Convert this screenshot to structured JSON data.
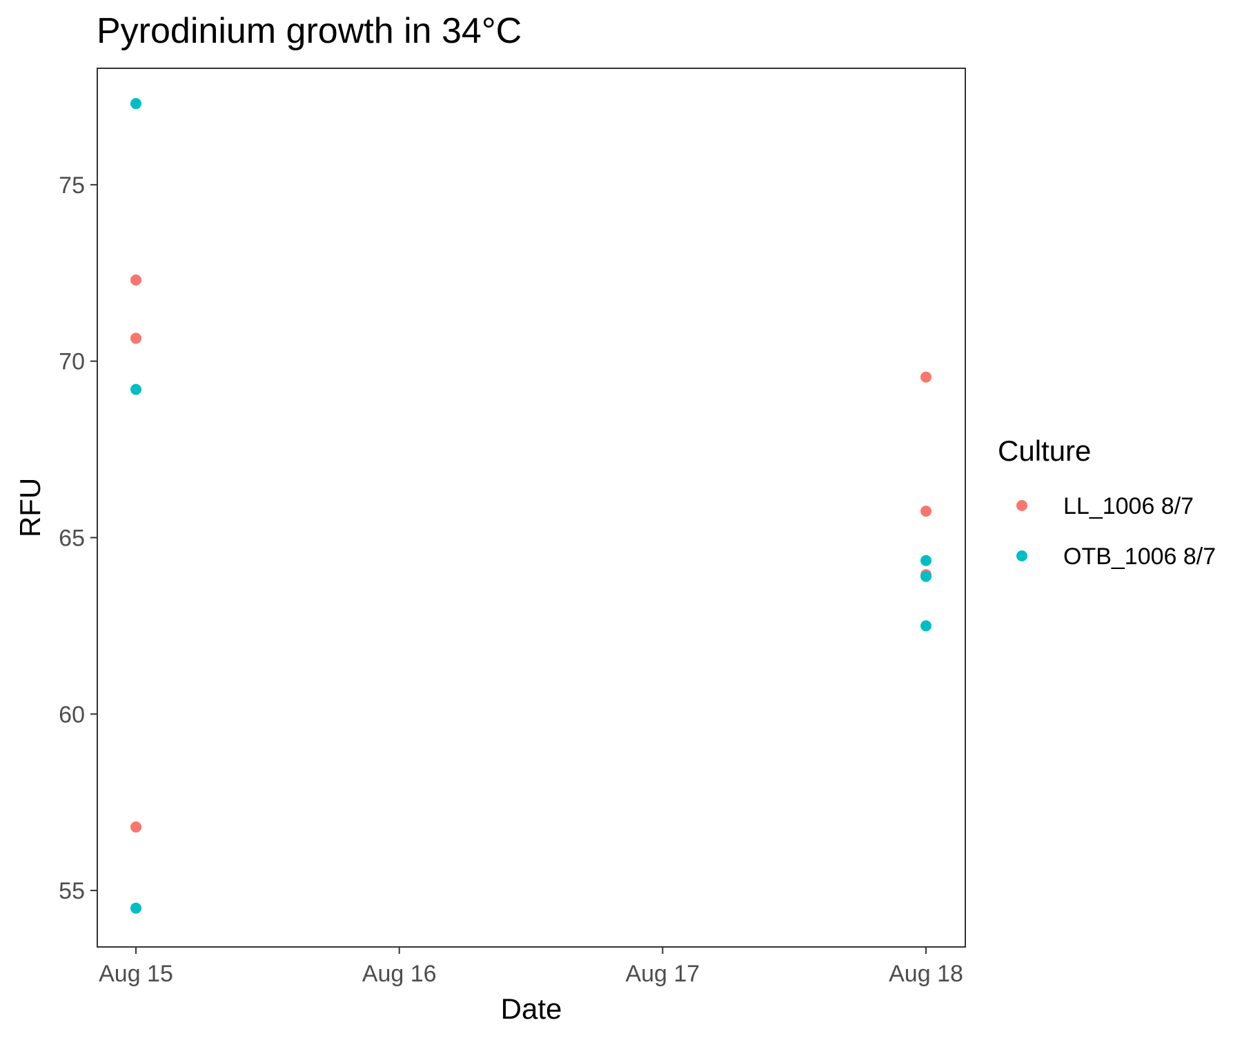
{
  "chart_data": {
    "type": "scatter",
    "title": "Pyrodinium growth in 34°C",
    "xlabel": "Date",
    "ylabel": "RFU",
    "x_ticks": [
      "Aug 15",
      "Aug 16",
      "Aug 17",
      "Aug 18"
    ],
    "y_ticks": [
      "55",
      "60",
      "65",
      "70",
      "75"
    ],
    "ylim": [
      53.4,
      78.3
    ],
    "grid": false,
    "legend": {
      "title": "Culture",
      "position": "right"
    },
    "series": [
      {
        "name": "LL_1006 8/7",
        "color": "#F8766D",
        "points": [
          {
            "x": "Aug 15",
            "y": 72.3
          },
          {
            "x": "Aug 15",
            "y": 70.65
          },
          {
            "x": "Aug 15",
            "y": 56.8
          },
          {
            "x": "Aug 18",
            "y": 69.55
          },
          {
            "x": "Aug 18",
            "y": 65.75
          },
          {
            "x": "Aug 18",
            "y": 63.95
          }
        ]
      },
      {
        "name": "OTB_1006 8/7",
        "color": "#00BFC4",
        "points": [
          {
            "x": "Aug 15",
            "y": 77.3
          },
          {
            "x": "Aug 15",
            "y": 69.2
          },
          {
            "x": "Aug 15",
            "y": 54.5
          },
          {
            "x": "Aug 18",
            "y": 64.35
          },
          {
            "x": "Aug 18",
            "y": 63.9
          },
          {
            "x": "Aug 18",
            "y": 62.5
          }
        ]
      }
    ]
  }
}
